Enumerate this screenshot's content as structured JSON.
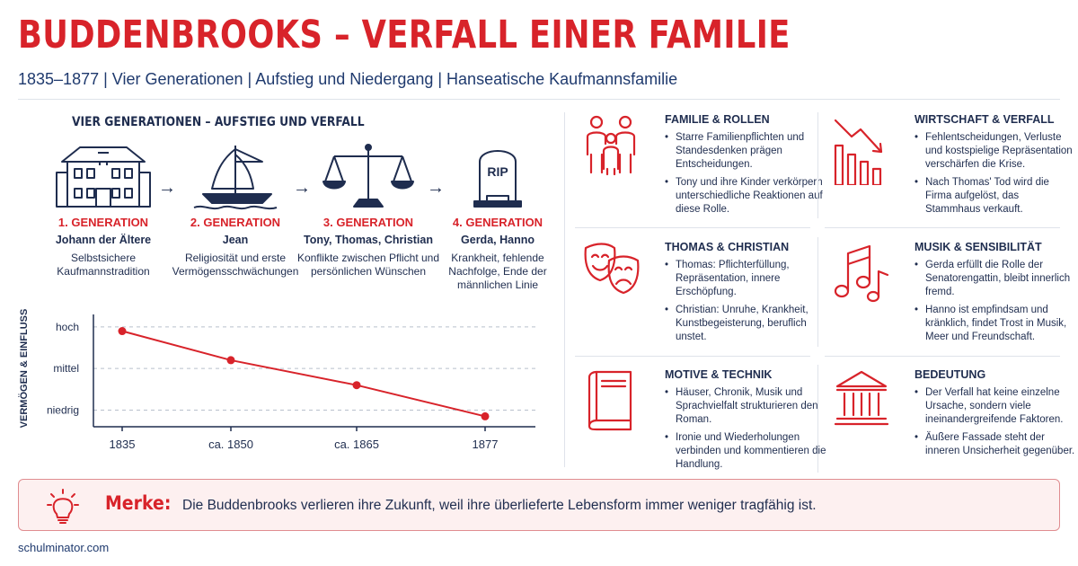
{
  "header": {
    "title": "BUDDENBROOKS – VERFALL EINER FAMILIE",
    "subtitle": "1835–1877 | Vier Generationen | Aufstieg und Niedergang | Hanseatische Kaufmannsfamilie"
  },
  "generations": {
    "heading": "VIER GENERATIONEN – AUFSTIEG UND VERFALL",
    "arrow": "→",
    "items": [
      {
        "label": "1. GENERATION",
        "names": "Johann der Ältere",
        "description": "Selbstsichere Kaufmannstradition",
        "icon": "house-icon"
      },
      {
        "label": "2. GENERATION",
        "names": "Jean",
        "description": "Religiosität und erste Vermögensschwächungen",
        "icon": "ship-icon"
      },
      {
        "label": "3. GENERATION",
        "names": "Tony, Thomas, Christian",
        "description": "Konflikte zwischen Pflicht und persönlichen Wünschen",
        "icon": "scales-icon"
      },
      {
        "label": "4. GENERATION",
        "names": "Gerda, Hanno",
        "description": "Krankheit, fehlende Nachfolge, Ende der männlichen Linie",
        "icon": "gravestone-icon",
        "icon_text": "RIP"
      }
    ]
  },
  "chart_data": {
    "type": "line",
    "ylabel": "VERMÖGEN & EINFLUSS",
    "y_categories": [
      "niedrig",
      "mittel",
      "hoch"
    ],
    "x": [
      "1835",
      "ca. 1850",
      "ca. 1865",
      "1877"
    ],
    "series": [
      {
        "values": [
          2.9,
          2.2,
          1.6,
          0.85
        ]
      }
    ],
    "ylim": [
      0.6,
      3.3
    ],
    "grid": true,
    "line_color": "#d8232a"
  },
  "panels": [
    {
      "title": "FAMILIE & ROLLEN",
      "icon": "family-icon",
      "bullets": [
        "Starre Familienpflichten und Standesdenken prägen Entscheidungen.",
        "Tony und ihre Kinder verkörpern unterschiedliche Reaktionen auf diese Rolle."
      ]
    },
    {
      "title": "WIRTSCHAFT & VERFALL",
      "icon": "declining-chart-icon",
      "bullets": [
        "Fehlentscheidungen, Verluste und kostspielige Repräsentation verschärfen die Krise.",
        "Nach Thomas' Tod wird die Firma aufgelöst, das Stammhaus verkauft."
      ]
    },
    {
      "title": "THOMAS & CHRISTIAN",
      "icon": "theater-masks-icon",
      "bullets": [
        "Thomas: Pflichterfüllung, Repräsentation, innere Erschöpfung.",
        "Christian: Unruhe, Krankheit, Kunstbegeisterung, beruflich unstet."
      ]
    },
    {
      "title": "MUSIK & SENSIBILITÄT",
      "icon": "music-notes-icon",
      "bullets": [
        "Gerda erfüllt die Rolle der Senatorengattin, bleibt innerlich fremd.",
        "Hanno ist empfindsam und kränklich, findet Trost in Musik, Meer und Freundschaft."
      ]
    },
    {
      "title": "MOTIVE & TECHNIK",
      "icon": "book-icon",
      "bullets": [
        "Häuser, Chronik, Musik und Sprachvielfalt strukturieren den Roman.",
        "Ironie und Wiederholungen verbinden und kommentieren die Handlung."
      ]
    },
    {
      "title": "BEDEUTUNG",
      "icon": "temple-icon",
      "bullets": [
        "Der Verfall hat keine einzelne Ursache, sondern viele ineinandergreifende Faktoren.",
        "Äußere Fassade steht der inneren Unsicherheit gegenüber."
      ]
    }
  ],
  "merke": {
    "title": "Merke:",
    "text": "Die Buddenbrooks verlieren ihre Zukunft, weil ihre überlieferte Lebensform immer weniger tragfähig ist.",
    "icon": "lightbulb-icon"
  },
  "footer": {
    "text": "schulminator.com"
  },
  "colors": {
    "accent": "#d8232a",
    "navy": "#1f2d4f",
    "merke_bg": "#fdf0f0"
  }
}
